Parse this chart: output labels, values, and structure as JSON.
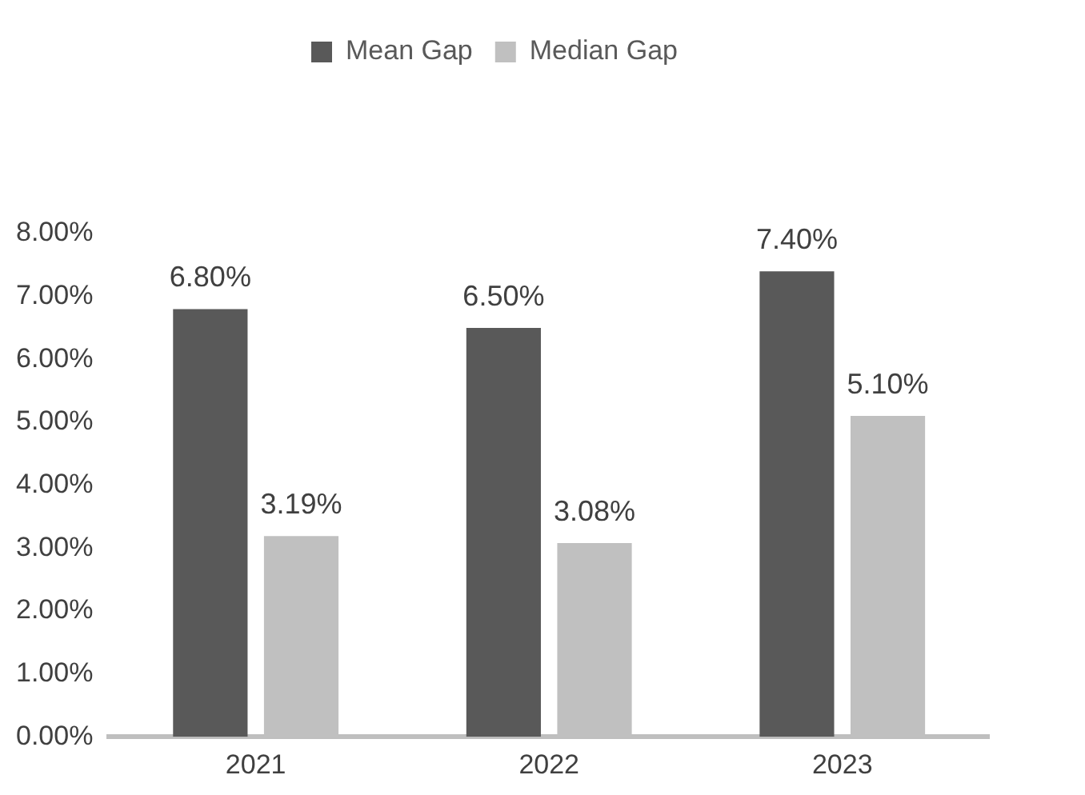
{
  "chart_data": {
    "type": "bar",
    "categories": [
      "2021",
      "2022",
      "2023"
    ],
    "series": [
      {
        "name": "Mean Gap",
        "color": "#595959",
        "values": [
          6.8,
          6.5,
          7.4
        ],
        "value_labels": [
          "6.80%",
          "6.50%",
          "7.40%"
        ]
      },
      {
        "name": "Median Gap",
        "color": "#c0c0c0",
        "values": [
          3.19,
          3.08,
          5.1
        ],
        "value_labels": [
          "3.19%",
          "3.08%",
          "5.10%"
        ]
      }
    ],
    "ylim": [
      0,
      8
    ],
    "yticks": [
      {
        "value": 0,
        "label": "0.00%"
      },
      {
        "value": 1,
        "label": "1.00%"
      },
      {
        "value": 2,
        "label": "2.00%"
      },
      {
        "value": 3,
        "label": "3.00%"
      },
      {
        "value": 4,
        "label": "4.00%"
      },
      {
        "value": 5,
        "label": "5.00%"
      },
      {
        "value": 6,
        "label": "6.00%"
      },
      {
        "value": 7,
        "label": "7.00%"
      },
      {
        "value": 8,
        "label": "8.00%"
      }
    ],
    "grid": false,
    "legend": "top"
  }
}
